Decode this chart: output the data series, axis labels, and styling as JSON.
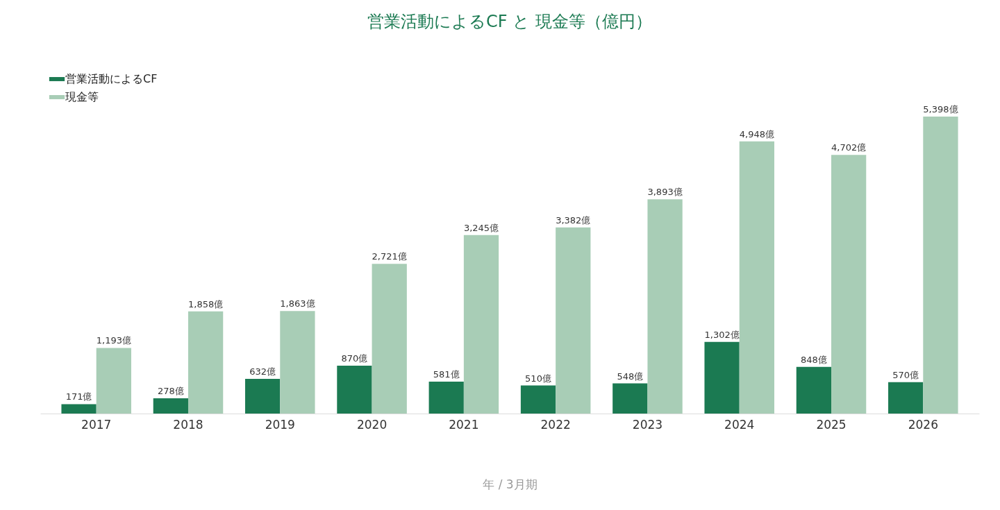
{
  "chart_data": {
    "type": "bar",
    "title": "営業活動によるCF と 現金等（億円）",
    "xlabel": "年 / 3月期",
    "categories": [
      "2017",
      "2018",
      "2019",
      "2020",
      "2021",
      "2022",
      "2023",
      "2024",
      "2025",
      "2026"
    ],
    "series": [
      {
        "name": "営業活動によるCF",
        "color": "#1b7a52",
        "values": [
          171,
          278,
          632,
          870,
          581,
          510,
          548,
          1302,
          848,
          570
        ],
        "value_labels": [
          "171億",
          "278億",
          "632億",
          "870億",
          "581億",
          "510億",
          "548億",
          "1,302億",
          "848億",
          "570億"
        ]
      },
      {
        "name": "現金等",
        "color": "#a8cdb6",
        "values": [
          1193,
          1858,
          1863,
          2721,
          3245,
          3382,
          3893,
          4948,
          4702,
          5398
        ],
        "value_labels": [
          "1,193億",
          "1,858億",
          "1,863億",
          "2,721億",
          "3,245億",
          "3,382億",
          "3,893億",
          "4,948億",
          "4,702億",
          "5,398億"
        ]
      }
    ],
    "legend": "top left"
  }
}
